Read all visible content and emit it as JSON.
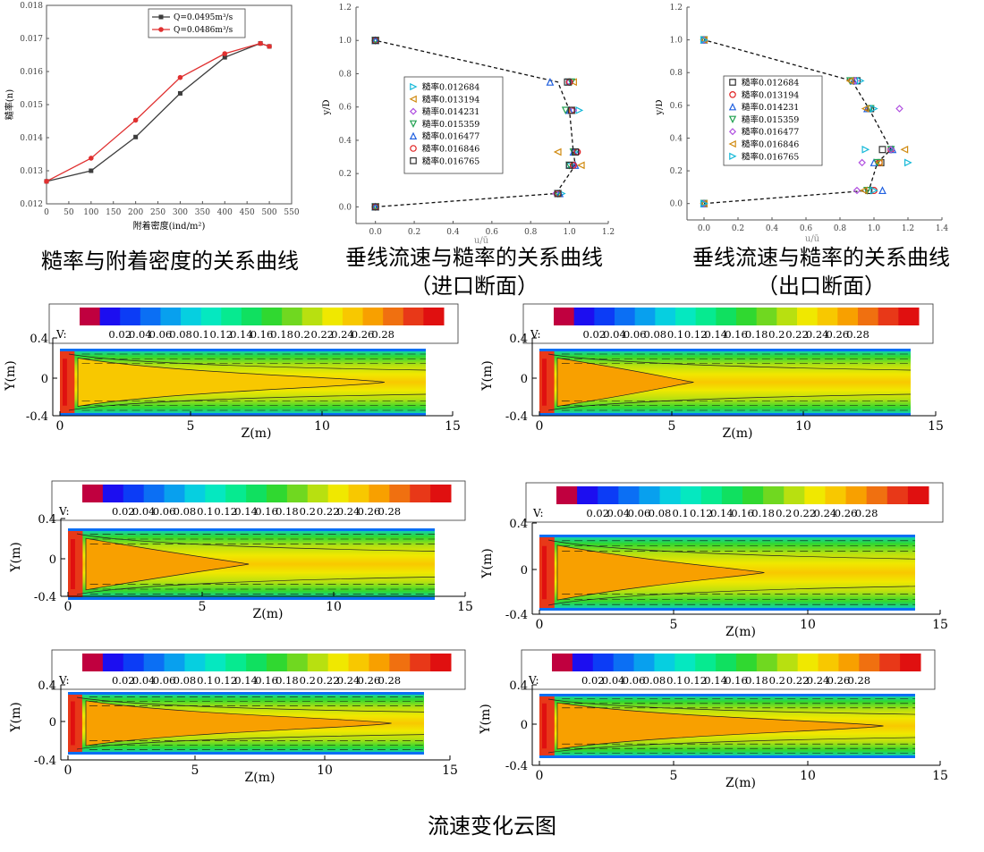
{
  "captions": {
    "c1": "糙率与附着密度的关系曲线",
    "c2": "垂线流速与糙率的关系曲线",
    "c2b": "（进口断面）",
    "c3": "垂线流速与糙率的关系曲线",
    "c3b": "（出口断面）",
    "c4": "流速变化云图"
  },
  "chart_data": [
    {
      "type": "line",
      "xlabel": "附着密度(ind/m²)",
      "ylabel": "糙率(n)",
      "xlim": [
        0,
        550
      ],
      "ylim": [
        0.012,
        0.018
      ],
      "xticks": [
        "0",
        "50",
        "100",
        "150",
        "200",
        "250",
        "300",
        "350",
        "400",
        "450",
        "500",
        "550"
      ],
      "yticks": [
        "0.012",
        "0.013",
        "0.014",
        "0.015",
        "0.016",
        "0.017",
        "0.018"
      ],
      "legend_position": "top-center",
      "series": [
        {
          "name": "Q=0.0495m³/s",
          "color": "#3d3d3d",
          "x": [
            0,
            100,
            200,
            300,
            400,
            480,
            500
          ],
          "y": [
            0.01268,
            0.013,
            0.01402,
            0.01534,
            0.01643,
            0.01685,
            0.01676
          ]
        },
        {
          "name": "Q=0.0486m³/s",
          "color": "#e03030",
          "x": [
            0,
            100,
            200,
            300,
            400,
            480,
            500
          ],
          "y": [
            0.01268,
            0.01338,
            0.01453,
            0.01582,
            0.01654,
            0.01685,
            0.01676
          ]
        }
      ]
    },
    {
      "type": "scatter",
      "xlabel": "u/ū",
      "ylabel": "y/D",
      "xlim": [
        -0.1,
        1.2
      ],
      "ylim": [
        -0.1,
        1.2
      ],
      "xticks": [
        "0.0",
        "0.2",
        "0.4",
        "0.6",
        "0.8",
        "1.0",
        "1.2"
      ],
      "yticks": [
        "0.0",
        "0.2",
        "0.4",
        "0.6",
        "0.8",
        "1.0",
        "1.2"
      ],
      "legend_position": "center-left",
      "profile": {
        "x": [
          0,
          0.93,
          1.03,
          1.02,
          1.0,
          0.94,
          0
        ],
        "y": [
          0,
          0.08,
          0.25,
          0.33,
          0.58,
          0.75,
          1.0
        ]
      },
      "series": [
        {
          "name": "糙率0.012684",
          "marker": "tri-right",
          "color": "#14b8d8",
          "x": [
            0,
            0.96,
            1.0,
            1.03,
            1.05,
            1.0,
            0
          ],
          "y": [
            0,
            0.08,
            0.25,
            0.33,
            0.58,
            0.75,
            1.0
          ]
        },
        {
          "name": "糙率0.013194",
          "marker": "tri-left",
          "color": "#d08a10",
          "x": [
            0,
            0.93,
            1.06,
            0.94,
            1.01,
            1.02,
            0
          ],
          "y": [
            0,
            0.08,
            0.25,
            0.33,
            0.58,
            0.75,
            1.0
          ]
        },
        {
          "name": "糙率0.014231",
          "marker": "diamond",
          "color": "#b050e0",
          "x": [
            0,
            0.93,
            1.02,
            1.04,
            1.02,
            1.0,
            0
          ],
          "y": [
            0,
            0.08,
            0.25,
            0.33,
            0.58,
            0.75,
            1.0
          ]
        },
        {
          "name": "糙率0.015359",
          "marker": "tri-down",
          "color": "#20a050",
          "x": [
            0,
            0.94,
            1.0,
            1.02,
            0.98,
            1.01,
            0
          ],
          "y": [
            0,
            0.08,
            0.25,
            0.33,
            0.58,
            0.75,
            1.0
          ]
        },
        {
          "name": "糙率0.016477",
          "marker": "tri-up",
          "color": "#2060e0",
          "x": [
            0,
            0.95,
            1.03,
            1.02,
            1.0,
            0.9,
            0
          ],
          "y": [
            0,
            0.08,
            0.25,
            0.33,
            0.58,
            0.75,
            1.0
          ]
        },
        {
          "name": "糙率0.016846",
          "marker": "circle",
          "color": "#e02020",
          "x": [
            0,
            0.94,
            1.02,
            1.04,
            1.01,
            1.0,
            0
          ],
          "y": [
            0,
            0.08,
            0.25,
            0.33,
            0.58,
            0.75,
            1.0
          ]
        },
        {
          "name": "糙率0.016765",
          "marker": "square",
          "color": "#303030",
          "x": [
            0,
            0.94,
            1.0,
            1.03,
            1.01,
            0.99,
            0
          ],
          "y": [
            0,
            0.08,
            0.25,
            0.33,
            0.58,
            0.75,
            1.0
          ]
        }
      ]
    },
    {
      "type": "scatter",
      "xlabel": "u/ū",
      "ylabel": "y/D",
      "xlim": [
        -0.1,
        1.4
      ],
      "ylim": [
        -0.1,
        1.2
      ],
      "xticks": [
        "0.0",
        "0.2",
        "0.4",
        "0.6",
        "0.8",
        "1.0",
        "1.2",
        "1.4"
      ],
      "yticks": [
        "0.0",
        "0.2",
        "0.4",
        "0.6",
        "0.8",
        "1.0",
        "1.2"
      ],
      "legend_position": "top-left",
      "profile": {
        "x": [
          0,
          0.97,
          1.02,
          1.1,
          0.97,
          0.87,
          0
        ],
        "y": [
          0,
          0.08,
          0.25,
          0.33,
          0.58,
          0.75,
          1.0
        ]
      },
      "series": [
        {
          "name": "糙率0.012684",
          "marker": "square",
          "color": "#303030",
          "x": [
            0,
            0.97,
            1.04,
            1.05,
            0.98,
            0.9,
            0
          ],
          "y": [
            0,
            0.08,
            0.25,
            0.33,
            0.58,
            0.75,
            1.0
          ]
        },
        {
          "name": "糙率0.013194",
          "marker": "circle",
          "color": "#e02020",
          "x": [
            0,
            1.0,
            1.03,
            1.1,
            0.97,
            0.87,
            0
          ],
          "y": [
            0,
            0.08,
            0.25,
            0.33,
            0.58,
            0.75,
            1.0
          ]
        },
        {
          "name": "糙率0.014231",
          "marker": "tri-up",
          "color": "#2060e0",
          "x": [
            0,
            1.05,
            1.0,
            1.11,
            0.96,
            0.88,
            0
          ],
          "y": [
            0,
            0.08,
            0.25,
            0.33,
            0.58,
            0.75,
            1.0
          ]
        },
        {
          "name": "糙率0.015359",
          "marker": "tri-down",
          "color": "#20a050",
          "x": [
            0,
            0.96,
            1.02,
            1.1,
            0.98,
            0.86,
            0
          ],
          "y": [
            0,
            0.08,
            0.25,
            0.33,
            0.58,
            0.75,
            1.0
          ]
        },
        {
          "name": "糙率0.016477",
          "marker": "diamond",
          "color": "#b050e0",
          "x": [
            0,
            0.9,
            0.93,
            1.1,
            1.15,
            0.89,
            0
          ],
          "y": [
            0,
            0.08,
            0.25,
            0.33,
            0.58,
            0.75,
            1.0
          ]
        },
        {
          "name": "糙率0.016846",
          "marker": "tri-left",
          "color": "#d08a10",
          "x": [
            0,
            0.94,
            1.03,
            1.18,
            0.95,
            0.86,
            0
          ],
          "y": [
            0,
            0.08,
            0.25,
            0.33,
            0.58,
            0.75,
            1.0
          ]
        },
        {
          "name": "糙率0.016765",
          "marker": "tri-right",
          "color": "#14b8d8",
          "x": [
            0,
            1.0,
            1.2,
            0.95,
            1.0,
            0.92,
            0
          ],
          "y": [
            0,
            0.08,
            0.25,
            0.33,
            0.58,
            0.75,
            1.0
          ]
        }
      ]
    },
    {
      "type": "heatmap",
      "colorbar_label": "V:",
      "colorbar_ticks": [
        "0.02",
        "0.04",
        "0.06",
        "0.08",
        "0.1",
        "0.12",
        "0.14",
        "0.16",
        "0.18",
        "0.2",
        "0.22",
        "0.24",
        "0.26",
        "0.28"
      ],
      "colors": [
        "#c0003f",
        "#1c0ef0",
        "#0c3cf6",
        "#0b6ff4",
        "#08a0ee",
        "#06cfe0",
        "#05e8c0",
        "#06ea90",
        "#10e060",
        "#30d830",
        "#70d820",
        "#b8e010",
        "#f0e800",
        "#f8c800",
        "#f8a000",
        "#f07010",
        "#e83818",
        "#e01010"
      ],
      "xlabel": "Z(m)",
      "ylabel": "Y(m)",
      "xticks": [
        "0",
        "5",
        "10",
        "15"
      ],
      "yticks": [
        "0.4",
        "0",
        "-0.4"
      ],
      "xlim": [
        0,
        15
      ],
      "ylim": [
        -0.4,
        0.4
      ],
      "panels": [
        {
          "core_end_m": 12.6,
          "core_level": 0.22
        },
        {
          "core_end_m": 5.9,
          "core_level": 0.24
        },
        {
          "core_end_m": 7.0,
          "core_level": 0.24
        },
        {
          "core_end_m": 8.5,
          "core_level": 0.24
        },
        {
          "core_end_m": 12.9,
          "core_level": 0.24
        },
        {
          "core_end_m": 13.0,
          "core_level": 0.24
        }
      ]
    }
  ]
}
